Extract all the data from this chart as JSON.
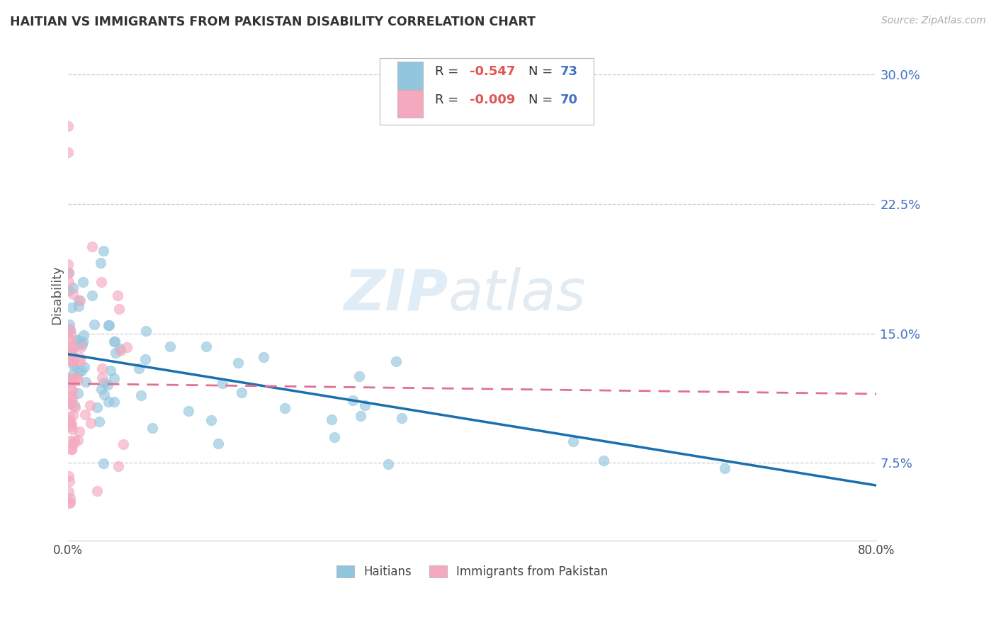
{
  "title": "HAITIAN VS IMMIGRANTS FROM PAKISTAN DISABILITY CORRELATION CHART",
  "source": "Source: ZipAtlas.com",
  "ylabel": "Disability",
  "watermark_zip": "ZIP",
  "watermark_atlas": "atlas",
  "legend_label1": "Haitians",
  "legend_label2": "Immigrants from Pakistan",
  "r1_text": "-0.547",
  "n1_text": "73",
  "r2_text": "-0.009",
  "n2_text": "70",
  "color1": "#92c5de",
  "color2": "#f4a9bf",
  "trend1_color": "#1a6faf",
  "trend2_color": "#e07090",
  "xmin": 0.0,
  "xmax": 0.8,
  "ymin": 0.03,
  "ymax": 0.315,
  "ytick_positions": [
    0.075,
    0.15,
    0.225,
    0.3
  ],
  "ytick_labels": [
    "7.5%",
    "15.0%",
    "22.5%",
    "30.0%"
  ],
  "xtick_positions": [
    0.0,
    0.16,
    0.32,
    0.48,
    0.64,
    0.8
  ],
  "xtick_labels": [
    "0.0%",
    "",
    "",
    "",
    "",
    "80.0%"
  ],
  "trend1_x0": 0.0,
  "trend1_y0": 0.138,
  "trend1_x1": 0.8,
  "trend1_y1": 0.062,
  "trend2_x0": 0.0,
  "trend2_y0": 0.121,
  "trend2_x1": 0.8,
  "trend2_y1": 0.115
}
